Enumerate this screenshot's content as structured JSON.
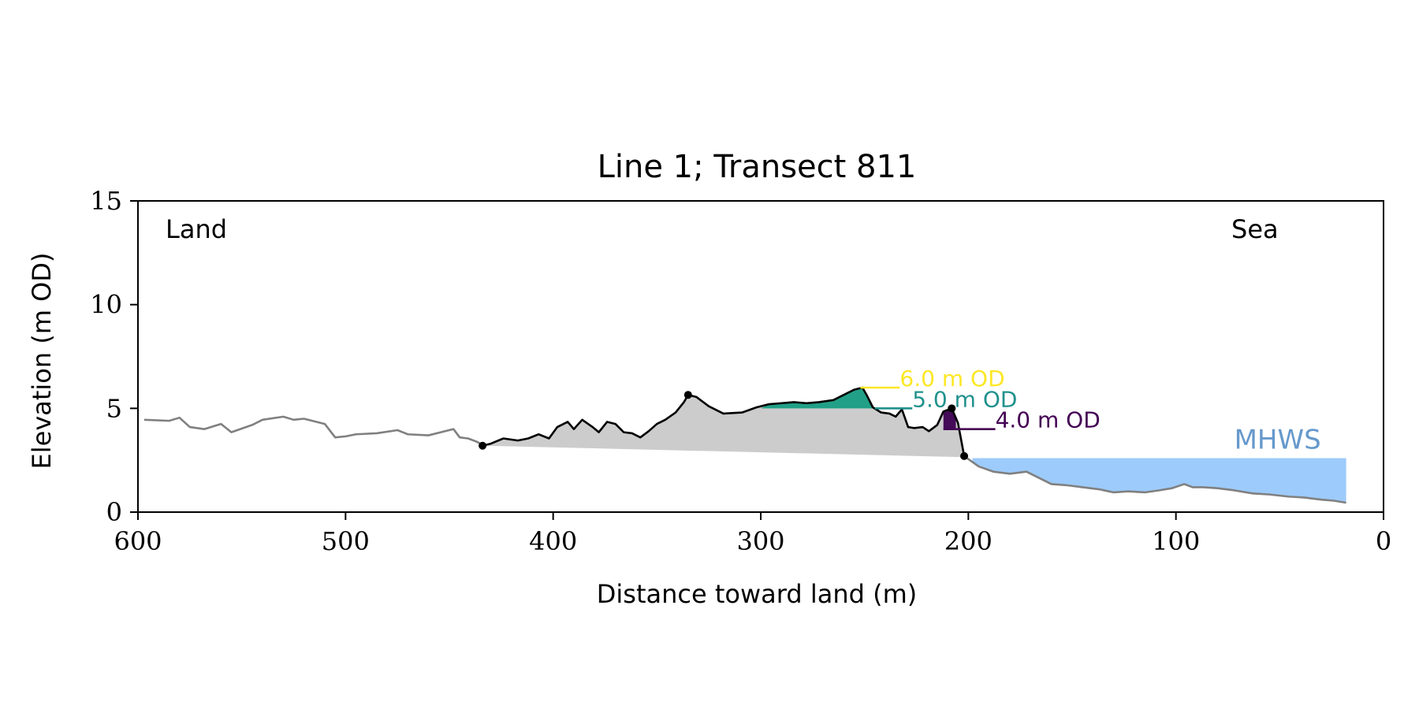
{
  "chart_data": {
    "type": "area",
    "title": "Line 1; Transect 811",
    "xlabel": "Distance toward land (m)",
    "ylabel": "Elevation (m OD)",
    "xlim": [
      600,
      0
    ],
    "ylim": [
      0,
      15
    ],
    "x_ticks": [
      600,
      500,
      400,
      300,
      200,
      100,
      0
    ],
    "y_ticks": [
      0,
      5,
      10,
      15
    ],
    "grid": false,
    "corner_labels": {
      "left": "Land",
      "right": "Sea"
    },
    "series": [
      {
        "role": "full profile (grey line)",
        "color": "#808080",
        "x": [
          597,
          585,
          580,
          575,
          568,
          560,
          555,
          545,
          540,
          530,
          525,
          520,
          510,
          505,
          500,
          495,
          485,
          475,
          470,
          460,
          452,
          448,
          445,
          441,
          437,
          433
        ],
        "y": [
          4.45,
          4.4,
          4.55,
          4.1,
          4.0,
          4.25,
          3.85,
          4.2,
          4.45,
          4.6,
          4.45,
          4.5,
          4.25,
          3.6,
          3.65,
          3.75,
          3.8,
          3.95,
          3.75,
          3.7,
          3.9,
          4.0,
          3.6,
          3.55,
          3.4,
          3.2
        ]
      },
      {
        "role": "barrier profile (black line)",
        "color": "#000000",
        "x": [
          434,
          430,
          424,
          417,
          412,
          407,
          402,
          398,
          393,
          390,
          386,
          381,
          378,
          374,
          370,
          366,
          362,
          358,
          354,
          350,
          346,
          341,
          337,
          335,
          331,
          325,
          318,
          309,
          302,
          296,
          290,
          284,
          278,
          272,
          265,
          260,
          255,
          251,
          249,
          246,
          242,
          238,
          235,
          232,
          229,
          226,
          222,
          219,
          215,
          212,
          208,
          205,
          202
        ],
        "y": [
          3.2,
          3.3,
          3.55,
          3.45,
          3.55,
          3.75,
          3.55,
          4.1,
          4.35,
          4.0,
          4.45,
          4.1,
          3.85,
          4.35,
          4.25,
          3.85,
          3.8,
          3.6,
          3.9,
          4.25,
          4.45,
          4.8,
          5.3,
          5.65,
          5.55,
          5.1,
          4.75,
          4.8,
          5.05,
          5.2,
          5.25,
          5.3,
          5.25,
          5.3,
          5.4,
          5.65,
          5.9,
          6.0,
          5.65,
          5.05,
          4.8,
          4.75,
          4.6,
          4.95,
          4.1,
          4.05,
          4.1,
          3.9,
          4.2,
          4.85,
          5.0,
          4.3,
          2.7
        ]
      },
      {
        "role": "seaward profile (grey line)",
        "color": "#808080",
        "x": [
          202,
          195,
          188,
          180,
          172,
          166,
          160,
          153,
          145,
          137,
          130,
          123,
          115,
          108,
          102,
          96,
          92,
          87,
          80,
          72,
          63,
          55,
          46,
          38,
          30,
          24,
          18
        ],
        "y": [
          2.7,
          2.2,
          1.95,
          1.85,
          1.95,
          1.65,
          1.35,
          1.3,
          1.2,
          1.1,
          0.95,
          1.0,
          0.95,
          1.05,
          1.15,
          1.35,
          1.2,
          1.2,
          1.15,
          1.05,
          0.9,
          0.85,
          0.75,
          0.7,
          0.6,
          0.55,
          0.45
        ]
      }
    ],
    "markers": [
      {
        "x": 434,
        "y": 3.2
      },
      {
        "x": 335,
        "y": 5.65
      },
      {
        "x": 208,
        "y": 5.0
      },
      {
        "x": 202,
        "y": 2.7
      }
    ],
    "fills": [
      {
        "name": "barrier volume",
        "color": "#cccccc",
        "x_from": 434,
        "x_to": 202,
        "base_from": 3.2,
        "base_to": 2.65
      },
      {
        "name": "above 5.0 m OD",
        "color": "#21a087",
        "level": 5.0,
        "x_from": 300,
        "x_to": 245
      },
      {
        "name": "above 4.0 m OD",
        "color": "#440b58",
        "level": 4.0,
        "x_from": 212,
        "x_to": 206
      }
    ],
    "level_markers": [
      {
        "label": "6.0 m OD",
        "level": 6.0,
        "color": "#fde725",
        "x_from": 252,
        "x_to": 233
      },
      {
        "label": "5.0 m OD",
        "level": 5.0,
        "color": "#21918c",
        "x_from": 245,
        "x_to": 227
      },
      {
        "label": "4.0 m OD",
        "level": 4.0,
        "color": "#440154",
        "x_from": 212,
        "x_to": 187
      }
    ],
    "mhws": {
      "label": "MHWS",
      "level": 2.6,
      "x_from": 198,
      "x_to": 18,
      "fill_color": "#9dcbfb",
      "label_color": "#6699cc"
    }
  }
}
